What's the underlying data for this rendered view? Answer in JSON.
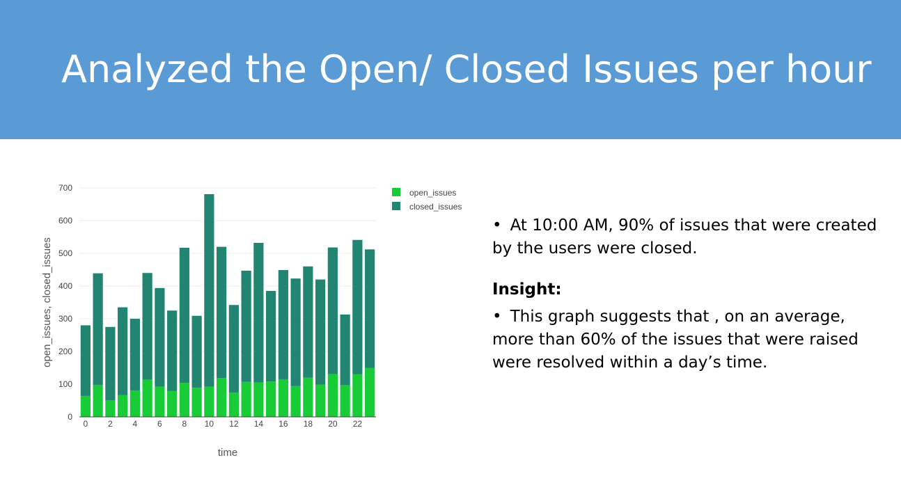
{
  "slide": {
    "title": "Analyzed the Open/ Closed Issues per hour",
    "banner_color": "#5b9bd5"
  },
  "bullets": {
    "first": "At 10:00 AM,  90% of issues that were created by the users were closed.",
    "insight_heading": "Insight:",
    "second": "This graph suggests that , on an average, more than 60% of the issues that were raised were  resolved within a day’s time.",
    "marker": "•"
  },
  "chart_data": {
    "type": "bar",
    "stacked": true,
    "xlabel": "time",
    "ylabel": "open_issues, closed_issues",
    "ylim": [
      0,
      700
    ],
    "y_ticks": [
      0,
      100,
      200,
      300,
      400,
      500,
      600,
      700
    ],
    "x_ticks": [
      0,
      2,
      4,
      6,
      8,
      10,
      12,
      14,
      16,
      18,
      20,
      22
    ],
    "grid": true,
    "legend_position": "top-right",
    "x": [
      0,
      1,
      2,
      3,
      4,
      5,
      6,
      7,
      8,
      9,
      10,
      11,
      12,
      13,
      14,
      15,
      16,
      17,
      18,
      19,
      20,
      21,
      22,
      23
    ],
    "series": [
      {
        "name": "open_issues",
        "color": "#17cc36",
        "values": [
          64,
          98,
          51,
          67,
          81,
          114,
          92,
          79,
          104,
          89,
          92,
          119,
          74,
          107,
          105,
          108,
          115,
          94,
          120,
          99,
          131,
          97,
          130,
          150
        ]
      },
      {
        "name": "closed_issues",
        "color": "#218572",
        "values": [
          216,
          341,
          224,
          268,
          219,
          326,
          302,
          246,
          413,
          220,
          589,
          401,
          268,
          340,
          427,
          277,
          334,
          329,
          340,
          321,
          387,
          216,
          411,
          362
        ]
      }
    ]
  }
}
